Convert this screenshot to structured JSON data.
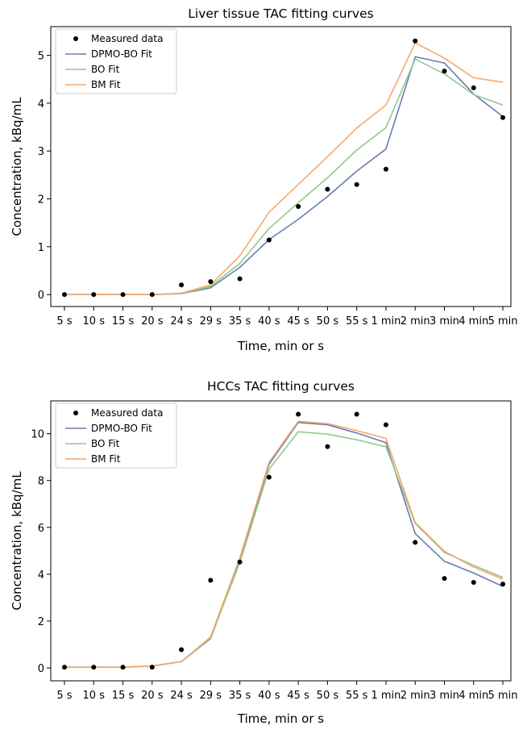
{
  "chart_data": [
    {
      "type": "line",
      "title": "Liver tissue TAC fitting curves",
      "xlabel": "Time, min or s",
      "ylabel": "Concentration, kBq/mL",
      "categories": [
        "5 s",
        "10 s",
        "15 s",
        "20 s",
        "24 s",
        "29 s",
        "35 s",
        "40 s",
        "45 s",
        "50 s",
        "55 s",
        "1 min",
        "2 min",
        "3 min",
        "4 min",
        "5 min"
      ],
      "ylim": [
        -0.25,
        5.6
      ],
      "yticks": [
        0,
        1,
        2,
        3,
        4,
        5
      ],
      "yticklabels": [
        "0",
        "1",
        "2",
        "3",
        "4",
        "5"
      ],
      "legend_position": "upper-left",
      "series": [
        {
          "name": "Measured data",
          "kind": "scatter",
          "color": "#000000",
          "values": [
            0,
            0,
            0,
            0,
            0.2,
            0.27,
            0.33,
            1.14,
            1.84,
            2.2,
            2.3,
            2.62,
            5.3,
            4.67,
            4.32,
            3.7
          ]
        },
        {
          "name": "DPMO-BO Fit",
          "kind": "line",
          "color": "#6b7bb3",
          "values": [
            0,
            0,
            0,
            0,
            0.02,
            0.14,
            0.57,
            1.15,
            1.57,
            2.05,
            2.58,
            3.04,
            4.97,
            4.84,
            4.19,
            3.72
          ]
        },
        {
          "name": "BO Fit",
          "kind": "line",
          "color": "#92c98e",
          "values": [
            0,
            0,
            0,
            0,
            0.02,
            0.17,
            0.65,
            1.38,
            1.92,
            2.44,
            3.02,
            3.49,
            4.92,
            4.61,
            4.18,
            3.96
          ]
        },
        {
          "name": "BM Fit",
          "kind": "line",
          "color": "#f5a76c",
          "values": [
            0,
            0,
            0,
            0,
            0.03,
            0.2,
            0.81,
            1.72,
            2.3,
            2.88,
            3.48,
            3.96,
            5.26,
            4.94,
            4.53,
            4.44
          ]
        }
      ]
    },
    {
      "type": "line",
      "title": "HCCs TAC fitting curves",
      "xlabel": "Time, min or s",
      "ylabel": "Concentration, kBq/mL",
      "categories": [
        "5 s",
        "10 s",
        "15 s",
        "20 s",
        "24 s",
        "29 s",
        "35 s",
        "40 s",
        "45 s",
        "50 s",
        "55 s",
        "1 min",
        "2 min",
        "3 min",
        "4 min",
        "5 min"
      ],
      "ylim": [
        -0.55,
        11.4
      ],
      "yticks": [
        0,
        2,
        4,
        6,
        8,
        10
      ],
      "yticklabels": [
        "0",
        "2",
        "4",
        "6",
        "8",
        "10"
      ],
      "legend_position": "upper-left",
      "series": [
        {
          "name": "Measured data",
          "kind": "scatter",
          "color": "#000000",
          "values": [
            0.03,
            0.03,
            0.03,
            0.03,
            0.78,
            3.74,
            4.52,
            8.14,
            10.83,
            9.45,
            10.83,
            10.38,
            5.36,
            3.82,
            3.65,
            3.58
          ]
        },
        {
          "name": "DPMO-BO Fit",
          "kind": "line",
          "color": "#6b7bb3",
          "values": [
            0.03,
            0.03,
            0.03,
            0.08,
            0.27,
            1.25,
            4.6,
            8.7,
            10.48,
            10.38,
            10.03,
            9.62,
            5.74,
            4.55,
            4.05,
            3.48
          ]
        },
        {
          "name": "BO Fit",
          "kind": "line",
          "color": "#92c98e",
          "values": [
            0.03,
            0.03,
            0.03,
            0.08,
            0.27,
            1.28,
            4.5,
            8.48,
            10.08,
            9.98,
            9.74,
            9.44,
            6.17,
            4.93,
            4.38,
            3.86
          ]
        },
        {
          "name": "BM Fit",
          "kind": "line",
          "color": "#f5a76c",
          "values": [
            0.03,
            0.03,
            0.03,
            0.08,
            0.27,
            1.32,
            4.7,
            8.78,
            10.53,
            10.43,
            10.13,
            9.8,
            6.21,
            4.98,
            4.31,
            3.79
          ]
        }
      ]
    }
  ]
}
